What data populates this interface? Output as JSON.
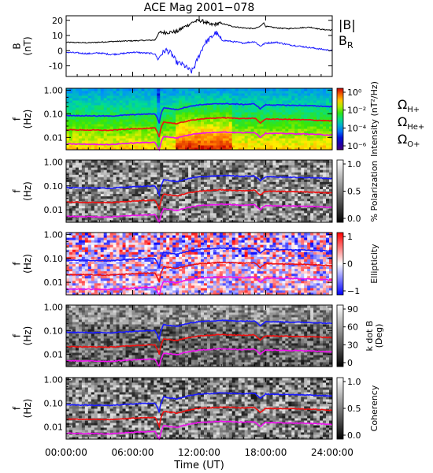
{
  "chart_data": {
    "type": "spectrogram",
    "title": "ACE Mag 2001−078",
    "xlabel": "Time (UT)",
    "x_range_hours": [
      0,
      24
    ],
    "x_ticks": [
      "00:00:00",
      "06:00:00",
      "12:00:00",
      "18:00:00",
      "24:00:00"
    ],
    "event_time_hours": 8.3,
    "panels": [
      {
        "id": "bfield",
        "type": "line",
        "ylabel_lines": [
          "B",
          "(nT)"
        ],
        "ylim": [
          -17,
          23
        ],
        "y_ticks": [
          -10,
          0,
          10,
          20
        ],
        "legend": [
          {
            "label": "|B|",
            "color": "#000000"
          },
          {
            "label": "B",
            "sub": "R",
            "color": "#1a1aff"
          }
        ],
        "series": [
          {
            "name": "|B|",
            "color": "#000000",
            "points": [
              [
                0,
                5.5
              ],
              [
                2,
                5.2
              ],
              [
                4,
                6.0
              ],
              [
                6,
                6.5
              ],
              [
                8,
                7.0
              ],
              [
                8.4,
                12.0
              ],
              [
                9,
                12.0
              ],
              [
                10,
                12.5
              ],
              [
                10.5,
                15.0
              ],
              [
                11,
                17.0
              ],
              [
                11.5,
                19.0
              ],
              [
                12,
                20.0
              ],
              [
                12.5,
                19.0
              ],
              [
                13,
                17.0
              ],
              [
                14,
                18.0
              ],
              [
                15,
                16.0
              ],
              [
                16,
                15.0
              ],
              [
                17,
                14.5
              ],
              [
                17.5,
                16.0
              ],
              [
                17.8,
                18.5
              ],
              [
                18,
                16.0
              ],
              [
                19,
                15.0
              ],
              [
                20,
                14.5
              ],
              [
                21,
                15.0
              ],
              [
                22,
                15.5
              ],
              [
                23,
                14.0
              ],
              [
                24,
                13.5
              ]
            ]
          },
          {
            "name": "B_R",
            "color": "#1a1aff",
            "points": [
              [
                0,
                -1.0
              ],
              [
                1,
                -1.5
              ],
              [
                2,
                -2.0
              ],
              [
                3,
                -1.5
              ],
              [
                4,
                -2.5
              ],
              [
                5,
                -2.0
              ],
              [
                6,
                -1.0
              ],
              [
                7,
                -1.5
              ],
              [
                8,
                -2.0
              ],
              [
                8.3,
                -6.0
              ],
              [
                8.5,
                -3.0
              ],
              [
                9,
                0.5
              ],
              [
                9.5,
                -2.0
              ],
              [
                10,
                -8.0
              ],
              [
                10.5,
                -9.0
              ],
              [
                11,
                -12.0
              ],
              [
                11.3,
                -14.0
              ],
              [
                11.6,
                -10.0
              ],
              [
                12,
                -3.0
              ],
              [
                12.5,
                5.0
              ],
              [
                13,
                8.0
              ],
              [
                13.5,
                12.0
              ],
              [
                14,
                7.0
              ],
              [
                15,
                6.0
              ],
              [
                16,
                5.0
              ],
              [
                17,
                6.0
              ],
              [
                17.5,
                3.0
              ],
              [
                18,
                5.0
              ],
              [
                19,
                5.5
              ],
              [
                20,
                4.0
              ],
              [
                21,
                3.0
              ],
              [
                22,
                2.0
              ],
              [
                23,
                1.0
              ],
              [
                24,
                0.0
              ]
            ]
          }
        ]
      },
      {
        "id": "intensity",
        "type": "heatmap",
        "ylabel_lines": [
          "f",
          "(Hz)"
        ],
        "y_log": true,
        "ylim": [
          0.003,
          1.2
        ],
        "y_ticks": [
          "1.00",
          "0.10",
          "0.01"
        ],
        "colorbar": {
          "scale": "rainbow",
          "label": "Intensity (nT²/Hz)",
          "ticks": [
            "10⁰",
            "10⁻²",
            "10⁻⁴",
            "10⁻⁶"
          ]
        },
        "legend": [
          {
            "label": "Ω",
            "sub": "H+",
            "color": "#1a1aff"
          },
          {
            "label": "Ω",
            "sub": "He+",
            "color": "#ee1111"
          },
          {
            "label": "Ω",
            "sub": "O+",
            "color": "#ee11ee"
          }
        ]
      },
      {
        "id": "polarization",
        "type": "heatmap",
        "ylabel_lines": [
          "f",
          "(Hz)"
        ],
        "y_log": true,
        "ylim": [
          0.003,
          1.2
        ],
        "y_ticks": [
          "1.00",
          "0.10",
          "0.01"
        ],
        "colorbar": {
          "scale": "gray",
          "label": "% Polarization",
          "ticks": [
            "1.0",
            "0.5",
            "0.0"
          ]
        }
      },
      {
        "id": "ellipticity",
        "type": "heatmap",
        "ylabel_lines": [
          "f",
          "(Hz)"
        ],
        "y_log": true,
        "ylim": [
          0.003,
          1.2
        ],
        "y_ticks": [
          "1.00",
          "0.10",
          "0.01"
        ],
        "colorbar": {
          "scale": "bwr",
          "label": "Ellipticity",
          "ticks": [
            "1",
            "0",
            "−1"
          ]
        }
      },
      {
        "id": "kdotb",
        "type": "heatmap",
        "ylabel_lines": [
          "f",
          "(Hz)"
        ],
        "y_log": true,
        "ylim": [
          0.003,
          1.2
        ],
        "y_ticks": [
          "1.00",
          "0.10",
          "0.01"
        ],
        "colorbar": {
          "scale": "gray",
          "label": "k dot B",
          "label2": "(Deg)",
          "ticks": [
            "90",
            "60",
            "30",
            "0"
          ]
        }
      },
      {
        "id": "coherency",
        "type": "heatmap",
        "ylabel_lines": [
          "f",
          "(Hz)"
        ],
        "y_log": true,
        "ylim": [
          0.003,
          1.2
        ],
        "y_ticks": [
          "1.00",
          "0.10",
          "0.01"
        ],
        "colorbar": {
          "scale": "gray",
          "label": "Coherency",
          "ticks": [
            "1.0",
            "0.5",
            "0.0"
          ]
        }
      }
    ],
    "gyrofrequency_curves_hz": {
      "H+": {
        "color": "#1a1aff",
        "points": [
          [
            0,
            0.085
          ],
          [
            4,
            0.08
          ],
          [
            6,
            0.092
          ],
          [
            8,
            0.1
          ],
          [
            8.4,
            0.04
          ],
          [
            8.8,
            0.18
          ],
          [
            10,
            0.15
          ],
          [
            11,
            0.2
          ],
          [
            12,
            0.24
          ],
          [
            14,
            0.27
          ],
          [
            16,
            0.25
          ],
          [
            17,
            0.26
          ],
          [
            17.5,
            0.16
          ],
          [
            18,
            0.24
          ],
          [
            20,
            0.23
          ],
          [
            22,
            0.22
          ],
          [
            24,
            0.2
          ]
        ]
      },
      "He+": {
        "color": "#ee1111",
        "points": [
          [
            0,
            0.021
          ],
          [
            4,
            0.02
          ],
          [
            6,
            0.023
          ],
          [
            8,
            0.025
          ],
          [
            8.4,
            0.01
          ],
          [
            8.8,
            0.045
          ],
          [
            10,
            0.038
          ],
          [
            11,
            0.05
          ],
          [
            12,
            0.06
          ],
          [
            14,
            0.068
          ],
          [
            16,
            0.063
          ],
          [
            17,
            0.065
          ],
          [
            17.5,
            0.04
          ],
          [
            18,
            0.06
          ],
          [
            20,
            0.058
          ],
          [
            22,
            0.055
          ],
          [
            24,
            0.05
          ]
        ]
      },
      "O+": {
        "color": "#ee11ee",
        "points": [
          [
            0,
            0.0053
          ],
          [
            4,
            0.005
          ],
          [
            6,
            0.0058
          ],
          [
            8,
            0.0063
          ],
          [
            8.4,
            0.0025
          ],
          [
            8.8,
            0.011
          ],
          [
            10,
            0.0095
          ],
          [
            11,
            0.0125
          ],
          [
            12,
            0.015
          ],
          [
            14,
            0.017
          ],
          [
            16,
            0.0157
          ],
          [
            17,
            0.0163
          ],
          [
            17.5,
            0.01
          ],
          [
            18,
            0.015
          ],
          [
            20,
            0.0145
          ],
          [
            22,
            0.0138
          ],
          [
            24,
            0.0125
          ]
        ]
      }
    }
  }
}
